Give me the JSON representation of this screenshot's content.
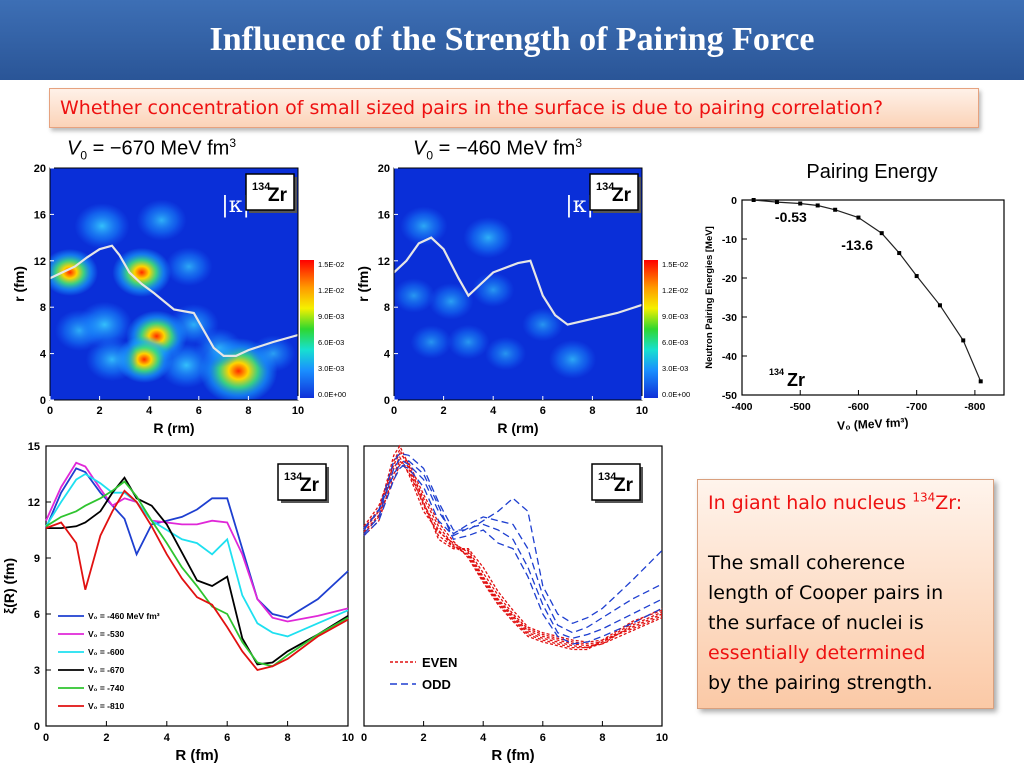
{
  "slide": {
    "title": "Influence of the Strength of Pairing Force",
    "question": "Whether concentration of small sized pairs in the surface is due to pairing correlation?",
    "label_left_v": "V",
    "label_left_sub": "0",
    "label_left_text": " = −670 MeV fm",
    "label_left_sup": "3",
    "label_mid_v": "V",
    "label_mid_sub": "0",
    "label_mid_text": " = −460 MeV fm",
    "label_mid_sup": "3"
  },
  "info_box": {
    "line1_pre": "In giant halo nucleus ",
    "line1_sup": "134",
    "line1_post": "Zr:",
    "line2": "The small coherence",
    "line3": "length of Cooper pairs in",
    "line4": "the surface of nuclei is",
    "line5": "essentially determined",
    "line6": "by the pairing strength."
  },
  "colors": {
    "title_bar": "#2f5fa6",
    "accent_red": "#e11111",
    "heatmap_bg": "#0a2fd8"
  },
  "chart_data": [
    {
      "id": "kappa_670",
      "type": "heatmap",
      "quantity_label": "|κ|²",
      "nucleus_mass": "134",
      "nucleus_symbol": "Zr",
      "xlabel": "R (rm)",
      "ylabel": "r (fm)",
      "xlim": [
        0,
        10
      ],
      "ylim": [
        0,
        20
      ],
      "xticks": [
        "0",
        "2",
        "4",
        "6",
        "8",
        "10"
      ],
      "yticks": [
        "0",
        "4",
        "8",
        "12",
        "16",
        "20"
      ],
      "colorbar_ticks": [
        "1.5E-02",
        "1.2E-02",
        "9.0E-03",
        "6.0E-03",
        "3.0E-03",
        "0.0E+00"
      ],
      "blobs": [
        {
          "x": 0.8,
          "y": 11,
          "a": 0.55
        },
        {
          "x": 2.1,
          "y": 15,
          "a": 0.45
        },
        {
          "x": 3.7,
          "y": 11,
          "a": 0.6
        },
        {
          "x": 4.5,
          "y": 15.5,
          "a": 0.35
        },
        {
          "x": 5.6,
          "y": 11.5,
          "a": 0.3
        },
        {
          "x": 1.2,
          "y": 6,
          "a": 0.35
        },
        {
          "x": 2.2,
          "y": 6.5,
          "a": 0.45
        },
        {
          "x": 4.3,
          "y": 5.5,
          "a": 0.65
        },
        {
          "x": 3.8,
          "y": 3.5,
          "a": 0.55
        },
        {
          "x": 2.5,
          "y": 3.5,
          "a": 0.4
        },
        {
          "x": 5.8,
          "y": 6.5,
          "a": 0.35
        },
        {
          "x": 5.5,
          "y": 3,
          "a": 0.45
        },
        {
          "x": 7.6,
          "y": 2.5,
          "a": 1.0
        },
        {
          "x": 6.8,
          "y": 4.5,
          "a": 0.3
        },
        {
          "x": 9.0,
          "y": 4,
          "a": 0.25
        }
      ],
      "line": {
        "x": [
          0,
          0.5,
          1,
          1.5,
          2,
          2.5,
          2.8,
          3.2,
          3.7,
          4.2,
          5,
          5.8,
          6.2,
          6.6,
          7,
          7.5,
          8,
          9,
          10
        ],
        "y": [
          10.5,
          11,
          11.5,
          12.3,
          13,
          13.3,
          12.5,
          11,
          10,
          9.2,
          7.8,
          7.5,
          6,
          4.5,
          3.8,
          3.8,
          4.3,
          5,
          5.6
        ]
      }
    },
    {
      "id": "kappa_460",
      "type": "heatmap",
      "quantity_label": "|κ|²",
      "nucleus_mass": "134",
      "nucleus_symbol": "Zr",
      "xlabel": "R (rm)",
      "ylabel": "r (fm)",
      "xlim": [
        0,
        10
      ],
      "ylim": [
        0,
        20
      ],
      "xticks": [
        "0",
        "2",
        "4",
        "6",
        "8",
        "10"
      ],
      "yticks": [
        "0",
        "4",
        "8",
        "12",
        "16",
        "20"
      ],
      "colorbar_ticks": [
        "1.5E-02",
        "1.2E-02",
        "9.0E-03",
        "6.0E-03",
        "3.0E-03",
        "0.0E+00"
      ],
      "blobs": [
        {
          "x": 1.2,
          "y": 15,
          "a": 0.3
        },
        {
          "x": 3.8,
          "y": 14,
          "a": 0.35
        },
        {
          "x": 0.8,
          "y": 9,
          "a": 0.2
        },
        {
          "x": 2.3,
          "y": 8.5,
          "a": 0.25
        },
        {
          "x": 4.0,
          "y": 9.5,
          "a": 0.2
        },
        {
          "x": 1.5,
          "y": 5,
          "a": 0.18
        },
        {
          "x": 3.0,
          "y": 5,
          "a": 0.2
        },
        {
          "x": 4.5,
          "y": 4,
          "a": 0.18
        },
        {
          "x": 6.0,
          "y": 6.5,
          "a": 0.18
        },
        {
          "x": 7.2,
          "y": 3.5,
          "a": 0.3
        }
      ],
      "line": {
        "x": [
          0,
          0.5,
          1,
          1.5,
          2,
          2.6,
          3,
          3.5,
          4,
          5,
          5.5,
          6,
          6.5,
          7,
          8,
          9,
          10
        ],
        "y": [
          11,
          12,
          13.5,
          14,
          13,
          10.5,
          9,
          10,
          11,
          11.8,
          12,
          9,
          7.3,
          6.5,
          7,
          7.5,
          8.2
        ]
      }
    },
    {
      "id": "pairing_energy",
      "type": "line",
      "title": "Pairing Energy",
      "xlabel": "V₀ (MeV fm³)",
      "ylabel": "Neutron Pairing Energies [MeV]",
      "xlim": [
        -400,
        -850
      ],
      "ylim": [
        -50,
        0
      ],
      "xticks": [
        "-400",
        "-500",
        "-600",
        "-700",
        "-800"
      ],
      "yticks": [
        "0",
        "-10",
        "-20",
        "-30",
        "-40",
        "-50"
      ],
      "x": [
        -420,
        -460,
        -500,
        -530,
        -560,
        -600,
        -640,
        -670,
        -700,
        -740,
        -780,
        -810
      ],
      "y": [
        0,
        -0.53,
        -0.9,
        -1.4,
        -2.5,
        -4.5,
        -8.5,
        -13.6,
        -19.5,
        -27,
        -36,
        -46.5
      ],
      "annotations": [
        {
          "text": "-0.53",
          "x": -460,
          "y": -0.53
        },
        {
          "text": "-13.6",
          "x": -670,
          "y": -13.6
        }
      ],
      "nucleus_mass": "134",
      "nucleus_symbol": "Zr"
    },
    {
      "id": "coherence_strength",
      "type": "line",
      "xlabel": "R (fm)",
      "ylabel": "ξ(R) (fm)",
      "xlim": [
        0,
        10
      ],
      "ylim": [
        0,
        15
      ],
      "xticks": [
        "0",
        "2",
        "4",
        "6",
        "8",
        "10"
      ],
      "yticks": [
        "0",
        "3",
        "6",
        "9",
        "12",
        "15"
      ],
      "nucleus_mass": "134",
      "nucleus_symbol": "Zr",
      "x": [
        0,
        0.5,
        1,
        1.3,
        1.8,
        2.2,
        2.6,
        3,
        3.5,
        4,
        4.5,
        5,
        5.5,
        6,
        6.5,
        7,
        7.5,
        8,
        9,
        10
      ],
      "series": [
        {
          "name": "V₀ = -460 MeV fm³",
          "color": "#1e3fd0",
          "y": [
            10.6,
            12.5,
            13.8,
            13.6,
            12.5,
            11.8,
            11.1,
            9.2,
            10.8,
            11,
            11.2,
            11.6,
            12.2,
            12.2,
            9.5,
            6.8,
            6,
            5.8,
            6.8,
            8.3
          ]
        },
        {
          "name": "V₀ = -530",
          "color": "#e028d8",
          "y": [
            11,
            12.8,
            14.1,
            13.9,
            12.7,
            11.8,
            12.2,
            12,
            11,
            10.9,
            10.8,
            10.8,
            11,
            10.9,
            9.2,
            6.8,
            5.8,
            5.6,
            5.9,
            6.3
          ]
        },
        {
          "name": "V₀ = -600",
          "color": "#1ee0f0",
          "y": [
            10.7,
            12,
            13.2,
            13.5,
            13,
            12.5,
            12.5,
            12,
            11,
            10.5,
            10,
            9.8,
            9.2,
            10,
            7,
            5.5,
            5,
            4.8,
            5.5,
            6.2
          ]
        },
        {
          "name": "V₀ = -670",
          "color": "#000000",
          "y": [
            10.6,
            10.6,
            10.7,
            10.9,
            11.5,
            12.5,
            13.3,
            12.2,
            11.8,
            10.8,
            9.3,
            7.8,
            7.5,
            8,
            4.7,
            3.3,
            3.4,
            4,
            4.9,
            5.9
          ]
        },
        {
          "name": "V₀ = -740",
          "color": "#2fc42f",
          "y": [
            10.7,
            11.2,
            11.5,
            11.8,
            12.2,
            12.6,
            13.1,
            12.3,
            11,
            9.8,
            8.5,
            7.5,
            6.4,
            6,
            4.5,
            3.4,
            3.2,
            3.8,
            4.9,
            5.8
          ]
        },
        {
          "name": "V₀ = -810",
          "color": "#e11111",
          "y": [
            10.6,
            10.9,
            9.8,
            7.3,
            10.2,
            11.5,
            12.6,
            12,
            10.7,
            9.2,
            7.9,
            6.9,
            6.5,
            5.3,
            4,
            3,
            3.2,
            3.6,
            4.8,
            5.7
          ]
        }
      ]
    },
    {
      "id": "even_odd",
      "type": "line",
      "xlabel": "R (fm)",
      "xlim": [
        0,
        10
      ],
      "ylim": [
        0,
        15
      ],
      "xticks": [
        "0",
        "2",
        "4",
        "6",
        "8",
        "10"
      ],
      "nucleus_mass": "134",
      "nucleus_symbol": "Zr",
      "x": [
        0,
        0.5,
        1,
        1.2,
        1.5,
        2,
        2.5,
        3,
        3.5,
        4,
        4.5,
        5,
        5.5,
        6,
        6.5,
        7,
        7.5,
        8,
        9,
        10
      ],
      "series": [
        {
          "name": "EVEN",
          "color": "#e11111",
          "dash": "3,2",
          "ys": [
            [
              10.5,
              11.5,
              14.5,
              15,
              14,
              12,
              10,
              9.5,
              9.5,
              8.5,
              7.2,
              6.2,
              5.3,
              5,
              4.8,
              4.6,
              4.5,
              4.6,
              5.2,
              5.9
            ],
            [
              10.3,
              11.2,
              14.2,
              14.8,
              13.8,
              11.8,
              10.2,
              9.6,
              9.4,
              8.2,
              7,
              6,
              5.2,
              4.9,
              4.7,
              4.5,
              4.4,
              4.5,
              5.3,
              6.0
            ],
            [
              10.6,
              11.6,
              13.8,
              14.4,
              13.5,
              11.5,
              10.4,
              9.8,
              9.3,
              8,
              6.8,
              5.9,
              5.1,
              4.8,
              4.6,
              4.4,
              4.3,
              4.4,
              5.1,
              5.8
            ],
            [
              10.2,
              11.0,
              13.5,
              14.2,
              13.6,
              11.9,
              10.5,
              9.6,
              9.2,
              7.9,
              6.7,
              5.8,
              5.0,
              4.7,
              4.5,
              4.3,
              4.2,
              4.4,
              5.4,
              6.1
            ],
            [
              10.4,
              11.3,
              13.2,
              14.0,
              13.9,
              12.2,
              10.7,
              9.7,
              9.1,
              7.8,
              6.6,
              5.7,
              4.9,
              4.6,
              4.4,
              4.2,
              4.2,
              4.5,
              5.5,
              6.3
            ],
            [
              10.7,
              11.8,
              14.0,
              14.6,
              14.1,
              12.4,
              10.9,
              9.9,
              9.0,
              7.7,
              6.5,
              5.6,
              4.8,
              4.5,
              4.3,
              4.1,
              4.1,
              4.6,
              5.6,
              6.2
            ]
          ]
        },
        {
          "name": "ODD",
          "color": "#1e3fd0",
          "dash": "7,4",
          "ys": [
            [
              10.6,
              11.5,
              14.2,
              14.6,
              14.5,
              13.8,
              12,
              10.5,
              10.5,
              11,
              11.5,
              12.2,
              11.5,
              7.5,
              6,
              5.5,
              5.8,
              6.3,
              7.8,
              9.4
            ],
            [
              10.3,
              11.2,
              13.8,
              14.3,
              14.0,
              13.2,
              11.5,
              10.3,
              10.8,
              11.2,
              11.0,
              10.8,
              9.5,
              7.0,
              5.4,
              5.0,
              5.3,
              5.8,
              6.8,
              7.6
            ],
            [
              10.5,
              11.6,
              13.5,
              14.0,
              13.8,
              12.8,
              11.0,
              10.2,
              10.6,
              10.8,
              10.5,
              10.0,
              8.5,
              6.5,
              5.0,
              4.7,
              4.9,
              5.2,
              6.0,
              6.8
            ],
            [
              10.2,
              11.0,
              13.2,
              13.8,
              14.2,
              13.5,
              11.8,
              10.0,
              10.2,
              10.5,
              9.8,
              9.5,
              8.0,
              6.0,
              4.8,
              4.4,
              4.5,
              4.8,
              5.5,
              6.3
            ]
          ]
        }
      ]
    }
  ]
}
